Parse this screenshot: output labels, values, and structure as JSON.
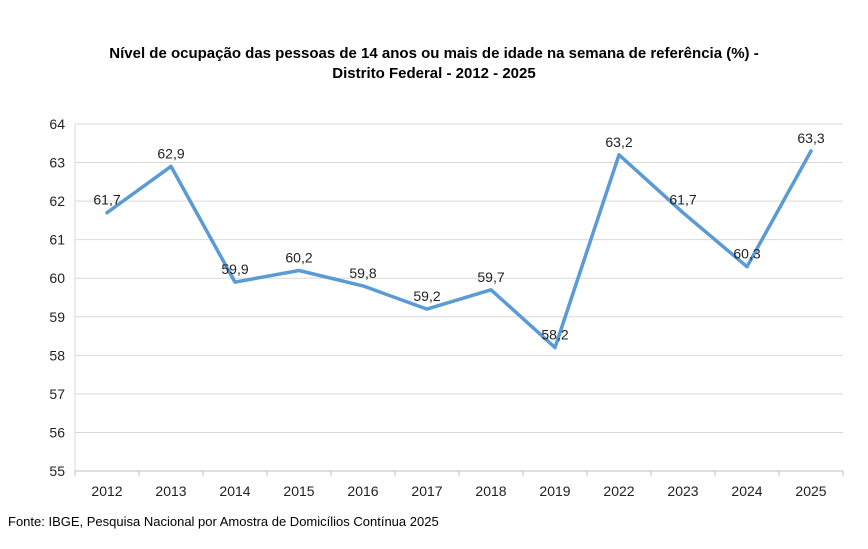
{
  "chart_data": {
    "type": "line",
    "title_line1": "Nível de ocupação das pessoas de 14 anos ou mais de idade na semana de referência (%) -",
    "title_line2": "Distrito Federal - 2012 - 2025",
    "categories": [
      "2012",
      "2013",
      "2014",
      "2015",
      "2016",
      "2017",
      "2018",
      "2019",
      "2022",
      "2023",
      "2024",
      "2025"
    ],
    "series": [
      {
        "values": [
          61.7,
          62.9,
          59.9,
          60.2,
          59.8,
          59.2,
          59.7,
          58.2,
          63.2,
          61.7,
          60.3,
          63.3
        ],
        "labels": [
          "61,7",
          "62,9",
          "59,9",
          "60,2",
          "59,8",
          "59,2",
          "59,7",
          "58,2",
          "63,2",
          "61,7",
          "60,3",
          "63,3"
        ],
        "color": "#5b9bd5"
      }
    ],
    "yticks": [
      "55",
      "56",
      "57",
      "58",
      "59",
      "60",
      "61",
      "62",
      "63",
      "64"
    ],
    "ylim": [
      55,
      64
    ],
    "grid": true,
    "legend": "none",
    "gridColor": "#d9d9d9"
  },
  "source": "Fonte: IBGE, Pesquisa Nacional por Amostra de Domicílios Contínua 2025"
}
